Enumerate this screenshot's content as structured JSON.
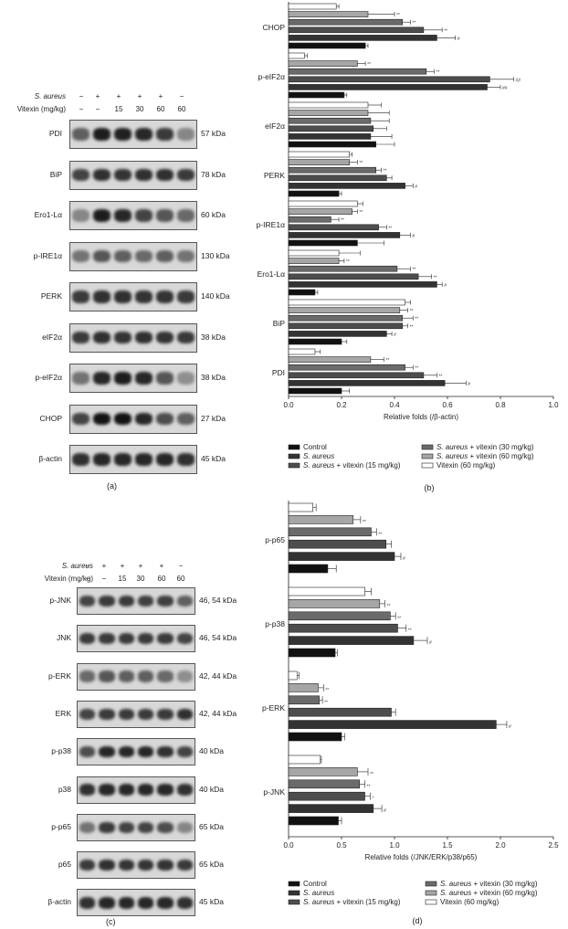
{
  "panel_a": {
    "caption": "(a)",
    "header": {
      "s_aureus_label": "S. aureus",
      "vitexin_label": "Vitexin (mg/kg)",
      "s_aureus_marks": [
        "−",
        "+",
        "+",
        "+",
        "+",
        "−"
      ],
      "vitexin_marks": [
        "−",
        "−",
        "15",
        "30",
        "60",
        "60"
      ]
    },
    "blots": [
      {
        "name": "PDI",
        "size": "57 kDa",
        "intensity": [
          0.55,
          0.9,
          0.88,
          0.85,
          0.75,
          0.35
        ]
      },
      {
        "name": "BiP",
        "size": "78 kDa",
        "intensity": [
          0.7,
          0.8,
          0.78,
          0.8,
          0.8,
          0.75
        ]
      },
      {
        "name": "Ero1-Lα",
        "size": "60 kDa",
        "intensity": [
          0.35,
          0.9,
          0.85,
          0.7,
          0.6,
          0.5
        ]
      },
      {
        "name": "p-IRE1α",
        "size": "130 kDa",
        "intensity": [
          0.45,
          0.6,
          0.55,
          0.5,
          0.55,
          0.45
        ]
      },
      {
        "name": "PERK",
        "size": "140 kDa",
        "intensity": [
          0.75,
          0.8,
          0.8,
          0.78,
          0.78,
          0.75
        ]
      },
      {
        "name": "eIF2α",
        "size": "38 kDa",
        "intensity": [
          0.75,
          0.8,
          0.78,
          0.8,
          0.78,
          0.75
        ]
      },
      {
        "name": "p-eIF2α",
        "size": "38 kDa",
        "intensity": [
          0.45,
          0.85,
          0.9,
          0.85,
          0.6,
          0.3
        ]
      },
      {
        "name": "CHOP",
        "size": "27 kDa",
        "intensity": [
          0.7,
          0.95,
          0.95,
          0.85,
          0.65,
          0.55
        ]
      },
      {
        "name": "β-actin",
        "size": "45 kDa",
        "intensity": [
          0.8,
          0.85,
          0.85,
          0.85,
          0.85,
          0.8
        ]
      }
    ]
  },
  "panel_c": {
    "caption": "(c)",
    "header": {
      "s_aureus_label": "S. aureus",
      "vitexin_label": "Vitexin (mg/kg)",
      "s_aureus_marks": [
        "−",
        "+",
        "+",
        "+",
        "+",
        "−"
      ],
      "vitexin_marks": [
        "−",
        "−",
        "15",
        "30",
        "60",
        "60"
      ]
    },
    "blots": [
      {
        "name": "p-JNK",
        "size": "46, 54 kDa",
        "intensity": [
          0.7,
          0.75,
          0.75,
          0.72,
          0.72,
          0.55
        ]
      },
      {
        "name": "JNK",
        "size": "46, 54 kDa",
        "intensity": [
          0.75,
          0.75,
          0.75,
          0.75,
          0.75,
          0.7
        ]
      },
      {
        "name": "p-ERK",
        "size": "42, 44 kDa",
        "intensity": [
          0.5,
          0.6,
          0.55,
          0.55,
          0.5,
          0.3
        ]
      },
      {
        "name": "ERK",
        "size": "42, 44 kDa",
        "intensity": [
          0.7,
          0.75,
          0.75,
          0.75,
          0.75,
          0.8
        ]
      },
      {
        "name": "p-p38",
        "size": "40 kDa",
        "intensity": [
          0.65,
          0.85,
          0.85,
          0.85,
          0.8,
          0.7
        ]
      },
      {
        "name": "p38",
        "size": "40 kDa",
        "intensity": [
          0.8,
          0.85,
          0.85,
          0.85,
          0.85,
          0.8
        ]
      },
      {
        "name": "p-p65",
        "size": "65 kDa",
        "intensity": [
          0.45,
          0.75,
          0.7,
          0.7,
          0.65,
          0.35
        ]
      },
      {
        "name": "p65",
        "size": "65 kDa",
        "intensity": [
          0.75,
          0.8,
          0.78,
          0.78,
          0.78,
          0.75
        ]
      },
      {
        "name": "β-actin",
        "size": "45 kDa",
        "intensity": [
          0.8,
          0.85,
          0.85,
          0.85,
          0.85,
          0.8
        ]
      }
    ]
  },
  "chart_data": [
    {
      "type": "bar",
      "orientation": "horizontal",
      "panel": "(b)",
      "xlabel": "Relative folds (/β-actin)",
      "xlim": [
        0,
        1.0
      ],
      "xticks": [
        "0.0",
        "0.2",
        "0.4",
        "0.6",
        "0.8",
        "1.0"
      ],
      "categories": [
        "CHOP",
        "p-eIF2α",
        "eIF2α",
        "PERK",
        "p-IRE1α",
        "Ero1-Lα",
        "BiP",
        "PDI"
      ],
      "series": [
        {
          "name": "Control",
          "color": "#111111",
          "values": [
            0.29,
            0.21,
            0.33,
            0.19,
            0.26,
            0.1,
            0.2,
            0.2
          ],
          "errors": [
            0.01,
            0.01,
            0.07,
            0.01,
            0.1,
            0.01,
            0.02,
            0.03
          ],
          "marks": [
            "",
            "",
            "",
            "",
            "",
            "",
            "",
            ""
          ]
        },
        {
          "name": "S. aureus",
          "color": "#333333",
          "values": [
            0.56,
            0.75,
            0.31,
            0.44,
            0.42,
            0.56,
            0.37,
            0.59
          ],
          "errors": [
            0.07,
            0.05,
            0.08,
            0.03,
            0.04,
            0.02,
            0.02,
            0.08
          ],
          "marks": [
            "#",
            "##",
            "",
            "#",
            "#",
            "#",
            "#",
            "#"
          ]
        },
        {
          "name": "S. aureus + vitexin (15 mg/kg)",
          "color": "#4d4d4d",
          "values": [
            0.51,
            0.76,
            0.32,
            0.37,
            0.34,
            0.49,
            0.43,
            0.51
          ],
          "errors": [
            0.07,
            0.09,
            0.05,
            0.02,
            0.03,
            0.05,
            0.02,
            0.05
          ],
          "marks": [
            "**",
            "##",
            "",
            "",
            "**",
            "**",
            "**",
            "**"
          ]
        },
        {
          "name": "S. aureus + vitexin (30 mg/kg)",
          "color": "#6b6b6b",
          "values": [
            0.43,
            0.52,
            0.31,
            0.33,
            0.16,
            0.41,
            0.43,
            0.44
          ],
          "errors": [
            0.03,
            0.03,
            0.07,
            0.02,
            0.03,
            0.05,
            0.04,
            0.03
          ],
          "marks": [
            "**",
            "**",
            "",
            "**",
            "**",
            "**",
            "**",
            "**"
          ]
        },
        {
          "name": "S. aureus + vitexin (60 mg/kg)",
          "color": "#a6a6a6",
          "values": [
            0.3,
            0.26,
            0.3,
            0.23,
            0.24,
            0.19,
            0.42,
            0.31
          ],
          "errors": [
            0.1,
            0.03,
            0.08,
            0.03,
            0.02,
            0.02,
            0.03,
            0.05
          ],
          "marks": [
            "**",
            "**",
            "",
            "**",
            "**",
            "**",
            "**",
            "**"
          ]
        },
        {
          "name": "Vitexin (60 mg/kg)",
          "color": "#ffffff",
          "values": [
            0.18,
            0.06,
            0.3,
            0.23,
            0.26,
            0.19,
            0.44,
            0.1
          ],
          "errors": [
            0.01,
            0.01,
            0.05,
            0.01,
            0.02,
            0.08,
            0.02,
            0.02
          ],
          "marks": [
            "",
            "",
            "",
            "",
            "",
            "",
            "",
            ""
          ]
        }
      ],
      "legend": {
        "left": [
          "Control",
          "S. aureus",
          "S. aureus + vitexin (15 mg/kg)"
        ],
        "right": [
          "S. aureus + vitexin (30 mg/kg)",
          "S. aureus + vitexin (60 mg/kg)",
          "Vitexin (60 mg/kg)"
        ]
      },
      "legend_position": "bottom",
      "caption": "(b)"
    },
    {
      "type": "bar",
      "orientation": "horizontal",
      "panel": "(d)",
      "xlabel": "Relative folds (/JNK/ERK/p38/p65)",
      "xlim": [
        0,
        2.5
      ],
      "xticks": [
        "0.0",
        "0.5",
        "1.0",
        "1.5",
        "2.0",
        "2.5"
      ],
      "categories": [
        "p-p65",
        "p-p38",
        "p-ERK",
        "p-JNK"
      ],
      "series": [
        {
          "name": "Control",
          "color": "#111111",
          "values": [
            0.37,
            0.44,
            0.5,
            0.47
          ],
          "errors": [
            0.08,
            0.02,
            0.03,
            0.03
          ],
          "marks": [
            "",
            "",
            "",
            ""
          ]
        },
        {
          "name": "S. aureus",
          "color": "#333333",
          "values": [
            1.0,
            1.18,
            1.96,
            0.8
          ],
          "errors": [
            0.06,
            0.13,
            0.1,
            0.08
          ],
          "marks": [
            "#",
            "#",
            "#",
            "#"
          ]
        },
        {
          "name": "S. aureus + vitexin (15 mg/kg)",
          "color": "#4d4d4d",
          "values": [
            0.92,
            1.03,
            0.97,
            0.72
          ],
          "errors": [
            0.05,
            0.08,
            0.04,
            0.05
          ],
          "marks": [
            "",
            "**",
            "",
            "*"
          ]
        },
        {
          "name": "S. aureus + vitexin (30 mg/kg)",
          "color": "#6b6b6b",
          "values": [
            0.78,
            0.96,
            0.29,
            0.67
          ],
          "errors": [
            0.05,
            0.05,
            0.03,
            0.05
          ],
          "marks": [
            "**",
            "**",
            "**",
            "**"
          ]
        },
        {
          "name": "S. aureus + vitexin (60 mg/kg)",
          "color": "#a6a6a6",
          "values": [
            0.61,
            0.86,
            0.28,
            0.65
          ],
          "errors": [
            0.07,
            0.05,
            0.05,
            0.1
          ],
          "marks": [
            "**",
            "**",
            "**",
            "**"
          ]
        },
        {
          "name": "Vitexin (60 mg/kg)",
          "color": "#ffffff",
          "values": [
            0.23,
            0.72,
            0.08,
            0.3
          ],
          "errors": [
            0.03,
            0.06,
            0.02,
            0.01
          ],
          "marks": [
            "",
            "",
            "",
            ""
          ]
        }
      ],
      "legend": {
        "left": [
          "Control",
          "S. aureus",
          "S. aureus + vitexin (15 mg/kg)"
        ],
        "right": [
          "S. aureus + vitexin (30 mg/kg)",
          "S. aureus + vitexin (60 mg/kg)",
          "Vitexin (60 mg/kg)"
        ]
      },
      "legend_position": "bottom",
      "caption": "(d)"
    }
  ]
}
